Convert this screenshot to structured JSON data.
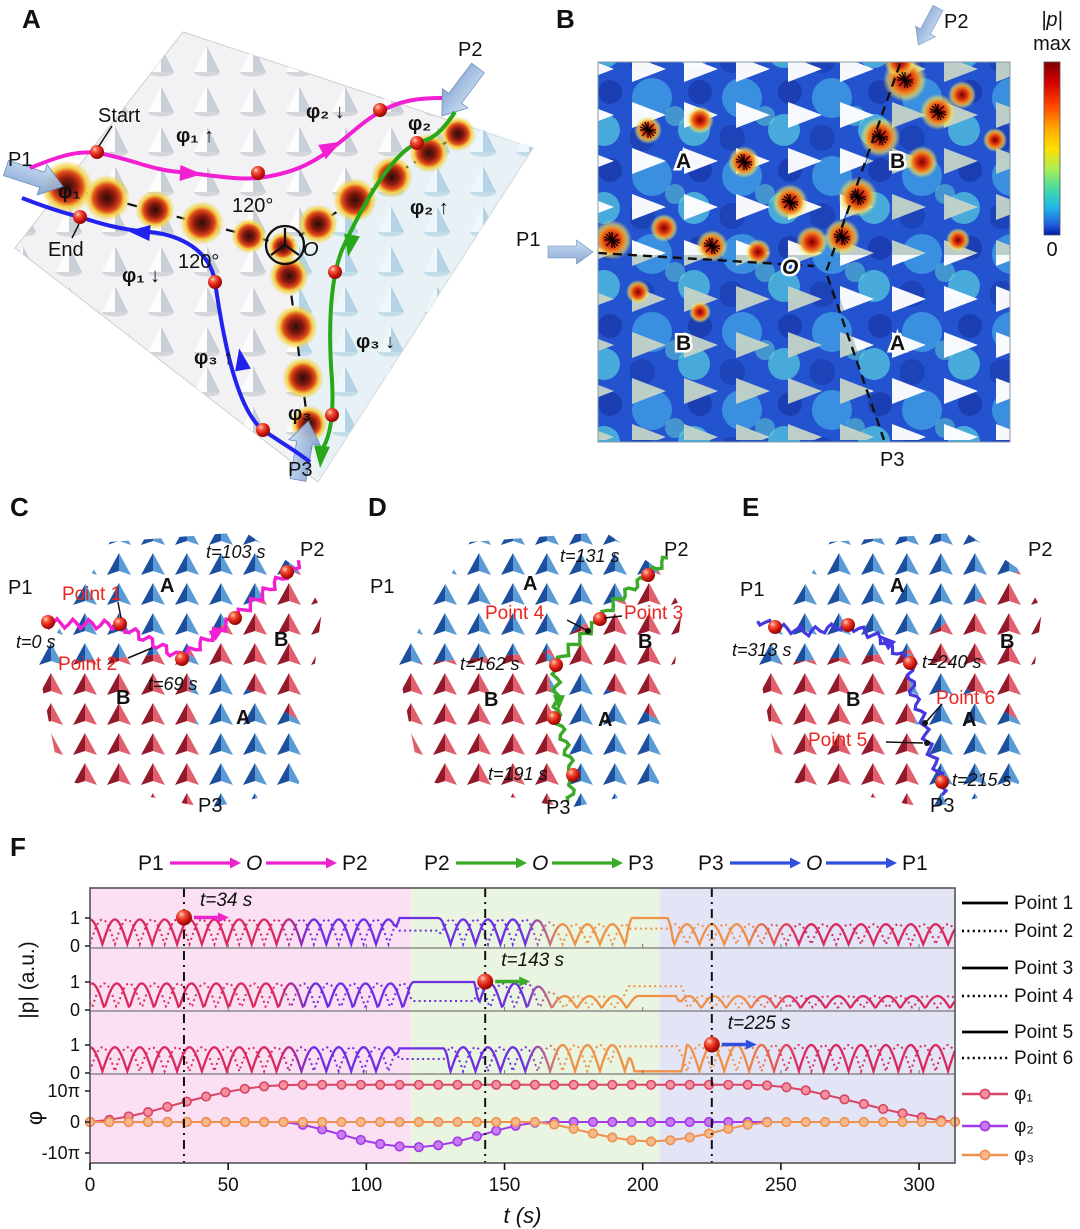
{
  "panelA": {
    "label": "A",
    "p1": "P1",
    "p2": "P2",
    "p3": "P3",
    "start": "Start",
    "end": "End",
    "phi1_up": "φ₁ ↑",
    "phi2_down": "φ₂ ↓",
    "phi2_up": "φ₂ ↑",
    "phi1_down": "φ₁ ↓",
    "phi3_up": "φ₃ ↑",
    "phi3_down": "φ₃ ↓",
    "phi1_in": "φ₁",
    "phi2_in": "φ₂",
    "phi3_in": "φ₃",
    "angle_top": "120°",
    "angle_left": "120°",
    "origin": "O"
  },
  "panelB": {
    "label": "B",
    "p1": "P1",
    "p2": "P2",
    "p3": "P3",
    "origin": "O",
    "region_a_top": "A",
    "region_b_top": "B",
    "region_b_bottom": "B",
    "region_a_bottom": "A",
    "colorbar": {
      "title": "|p|",
      "max_label": "max",
      "min_label": "0"
    }
  },
  "panelC": {
    "label": "C",
    "p1": "P1",
    "p2": "P2",
    "p3": "P3",
    "region_a_top": "A",
    "region_b_right": "B",
    "region_b_left": "B",
    "region_a_bottom": "A",
    "point1": "Point 1",
    "point2": "Point 2",
    "t_start": "t=0 s",
    "t_mid": "t=69 s",
    "t_end": "t=103 s"
  },
  "panelD": {
    "label": "D",
    "p1": "P1",
    "p2": "P2",
    "p3": "P3",
    "region_a_top": "A",
    "region_b_right": "B",
    "region_b_left": "B",
    "region_a_bottom": "A",
    "point3": "Point 3",
    "point4": "Point 4",
    "t_top": "t=131 s",
    "t_mid": "t=162 s",
    "t_bottom": "t=191 s"
  },
  "panelE": {
    "label": "E",
    "p1": "P1",
    "p2": "P2",
    "p3": "P3",
    "region_a_top": "A",
    "region_b_right": "B",
    "region_b_left": "B",
    "region_a_bottom": "A",
    "point5": "Point 5",
    "point6": "Point 6",
    "t_left": "t=313 s",
    "t_mid": "t=240 s",
    "t_bottom": "t=215 s"
  },
  "panelF": {
    "label": "F",
    "header": [
      {
        "from": "P1",
        "via": "O",
        "to": "P2",
        "color": "#ee22cc"
      },
      {
        "from": "P2",
        "via": "O",
        "to": "P3",
        "color": "#3aaa28"
      },
      {
        "from": "P3",
        "via": "O",
        "to": "P1",
        "color": "#2f4fe0"
      }
    ],
    "annotations": [
      {
        "text": "t=34 s",
        "t": 34,
        "row": 0,
        "color": "#ee22cc"
      },
      {
        "text": "t=143 s",
        "t": 143,
        "row": 1,
        "color": "#3aaa28"
      },
      {
        "text": "t=225 s",
        "t": 225,
        "row": 2,
        "color": "#2f4fe0"
      }
    ],
    "legend": [
      {
        "label": "Point 1",
        "style": "solid",
        "color": "#000000"
      },
      {
        "label": "Point 2",
        "style": "dotted",
        "color": "#000000"
      },
      {
        "label": "Point 3",
        "style": "solid",
        "color": "#000000"
      },
      {
        "label": "Point 4",
        "style": "dotted",
        "color": "#000000"
      },
      {
        "label": "Point 5",
        "style": "solid",
        "color": "#000000"
      },
      {
        "label": "Point 6",
        "style": "dotted",
        "color": "#000000"
      },
      {
        "label": "φ₁",
        "style": "marker",
        "color": "#d84565",
        "fill": "#f6919f"
      },
      {
        "label": "φ₂",
        "style": "marker",
        "color": "#a33ae8",
        "fill": "#c77cf2"
      },
      {
        "label": "φ₃",
        "style": "marker",
        "color": "#ed9050",
        "fill": "#f7b98a"
      }
    ]
  },
  "chart_data": {
    "type": "line",
    "xlabel": "t (s)",
    "xlim": [
      0,
      313
    ],
    "xticks": [
      0,
      50,
      100,
      150,
      200,
      250,
      300
    ],
    "ylabel_p": "|p| (a.u.)",
    "ylabel_phi": "φ",
    "p_yticks": [
      "1",
      "0"
    ],
    "phase_yticks": [
      "10π",
      "0",
      "-10π"
    ],
    "background_regions": [
      {
        "t_range": [
          0,
          116
        ],
        "color": "#fbdff2",
        "sequence": "P1→O→P2"
      },
      {
        "t_range": [
          116,
          206
        ],
        "color": "#e9f4e1",
        "sequence": "P2→O→P3"
      },
      {
        "t_range": [
          206,
          313
        ],
        "color": "#e4e4f7",
        "sequence": "P3→O→P1"
      }
    ],
    "time_markers": [
      34,
      143,
      225
    ],
    "curve_color_segments": [
      {
        "t_range": [
          0,
          67
        ],
        "color": "#d92a5e"
      },
      {
        "t_range": [
          81,
          157
        ],
        "color": "#6e2ee2"
      },
      {
        "t_range": [
          171,
          236
        ],
        "color": "#ef9247"
      },
      {
        "t_range": [
          257,
          313
        ],
        "color": "#d92a5e"
      }
    ],
    "oscillation_rows": [
      {
        "labels": [
          "Point 1",
          "Point 2"
        ],
        "ylim": [
          0,
          1.2
        ],
        "period_s": 9,
        "phase_s": -4.5,
        "amp_early": 0.95,
        "amp_late": 0.78,
        "plateaus_solid": [
          [
            112,
            126,
            1.0
          ],
          [
            196,
            209,
            1.0
          ]
        ],
        "plateaus_dotted": [
          [
            112,
            126,
            0.55
          ],
          [
            196,
            209,
            0.62
          ]
        ]
      },
      {
        "labels": [
          "Point 3",
          "Point 4"
        ],
        "ylim": [
          0,
          1.2
        ],
        "period_s": 9,
        "phase_s": -3.8,
        "amp_early": 0.95,
        "amp_late": 0.5,
        "plateaus_solid": [
          [
            117,
            139,
            1.0
          ],
          [
            199,
            212,
            0.5
          ]
        ],
        "plateaus_dotted": [
          [
            117,
            139,
            0.32
          ],
          [
            195,
            214,
            0.85
          ]
        ]
      },
      {
        "labels": [
          "Point 5",
          "Point 6"
        ],
        "ylim": [
          0,
          1.2
        ],
        "period_s": 9,
        "phase_s": -4.5,
        "amp_early": 0.92,
        "amp_late": 1.0,
        "plateaus_solid": [
          [
            112,
            128,
            0.88
          ],
          [
            197,
            214,
            0.06
          ]
        ],
        "plateaus_dotted": [
          [
            112,
            128,
            0.5
          ],
          [
            190,
            210,
            0.95
          ]
        ]
      }
    ],
    "phase_series": [
      {
        "name": "φ₁",
        "color": "#d84565",
        "fill": "#f6919f",
        "t": [
          0,
          7,
          14,
          21,
          28,
          35,
          42,
          49,
          56,
          63,
          70,
          77,
          84,
          91,
          98,
          105,
          112,
          119,
          126,
          133,
          140,
          147,
          154,
          161,
          168,
          175,
          182,
          189,
          196,
          203,
          210,
          217,
          224,
          231,
          238,
          245,
          252,
          259,
          266,
          273,
          280,
          287,
          294,
          301,
          308,
          313
        ],
        "phi_over_pi": [
          0,
          0.7,
          1.8,
          3.2,
          4.9,
          6.6,
          8.2,
          9.6,
          10.7,
          11.5,
          11.9,
          12,
          12,
          12,
          12,
          12,
          12,
          12,
          12,
          12,
          12,
          12,
          12,
          12,
          12,
          12,
          12,
          12,
          12,
          12,
          12,
          12,
          12,
          12,
          12,
          11.8,
          11.2,
          10.2,
          8.8,
          7.3,
          5.8,
          4.2,
          2.8,
          1.5,
          0.5,
          0.1
        ]
      },
      {
        "name": "φ₂",
        "color": "#a33ae8",
        "fill": "#c77cf2",
        "t": [
          0,
          7,
          14,
          21,
          28,
          35,
          42,
          49,
          56,
          63,
          70,
          77,
          84,
          91,
          98,
          105,
          112,
          119,
          126,
          133,
          140,
          147,
          154,
          161,
          168,
          175,
          182,
          189,
          196,
          203,
          210,
          217,
          224,
          231,
          238,
          245
        ],
        "phi_over_pi": [
          0,
          0,
          0,
          0,
          0,
          0,
          0,
          0,
          0,
          0,
          0,
          -0.9,
          -2.4,
          -4.1,
          -5.8,
          -7.1,
          -7.9,
          -8.1,
          -7.5,
          -6.3,
          -4.6,
          -2.8,
          -1.2,
          -0.2,
          0,
          0,
          0,
          0,
          0,
          0,
          0,
          0,
          0,
          0,
          0,
          0
        ]
      },
      {
        "name": "φ₃",
        "color": "#ed9050",
        "fill": "#f7b98a",
        "t": [
          0,
          7,
          14,
          21,
          28,
          35,
          42,
          49,
          56,
          63,
          70,
          77,
          84,
          91,
          98,
          105,
          112,
          119,
          126,
          133,
          140,
          147,
          154,
          161,
          168,
          175,
          182,
          189,
          196,
          203,
          210,
          217,
          224,
          231,
          238,
          245,
          252,
          259,
          266,
          273,
          280,
          287,
          294,
          301,
          308,
          313
        ],
        "phi_over_pi": [
          0,
          0,
          0,
          0,
          0,
          0,
          0,
          0,
          0,
          0,
          0,
          0,
          0,
          0,
          0,
          0,
          0,
          0,
          0,
          0,
          0,
          0,
          0,
          0,
          -0.8,
          -2.2,
          -3.7,
          -5.0,
          -5.9,
          -6.3,
          -5.9,
          -5.0,
          -3.7,
          -2.2,
          -0.9,
          -0.1,
          0,
          0,
          0,
          0,
          0,
          0,
          0,
          0,
          0,
          0
        ]
      }
    ]
  }
}
